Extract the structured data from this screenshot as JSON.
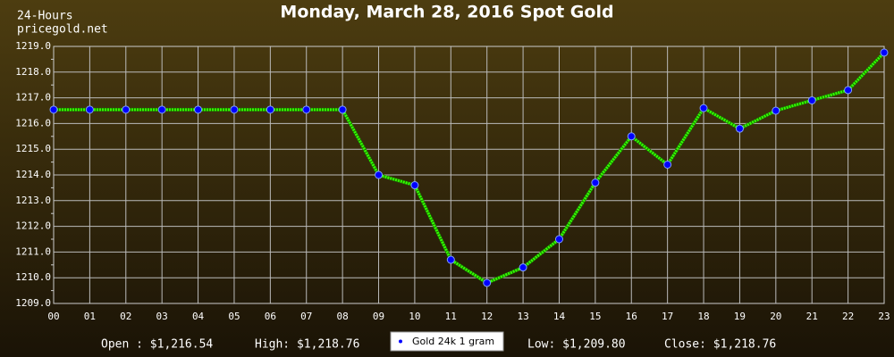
{
  "chart_data": {
    "type": "line",
    "title": "Monday, March 28, 2016 Spot Gold",
    "annotations": [
      "24-Hours",
      "pricegold.net"
    ],
    "categories": [
      "00",
      "01",
      "02",
      "03",
      "04",
      "05",
      "06",
      "07",
      "08",
      "09",
      "10",
      "11",
      "12",
      "13",
      "14",
      "15",
      "16",
      "17",
      "18",
      "19",
      "20",
      "21",
      "22",
      "23"
    ],
    "series": [
      {
        "name": "Gold 24k 1 gram",
        "color": "#33ff00",
        "marker_color": "#0000ff",
        "values": [
          1216.54,
          1216.54,
          1216.54,
          1216.54,
          1216.54,
          1216.54,
          1216.54,
          1216.54,
          1216.54,
          1214.0,
          1213.6,
          1210.7,
          1209.8,
          1210.4,
          1211.5,
          1213.7,
          1215.5,
          1214.4,
          1216.6,
          1215.8,
          1216.5,
          1216.9,
          1217.3,
          1218.76
        ]
      }
    ],
    "ylim": [
      1209,
      1219
    ],
    "yticks": [
      {
        "value": 1209,
        "label": "1209.0"
      },
      {
        "value": 1210,
        "label": "1210.0"
      },
      {
        "value": 1211,
        "label": "1211.0"
      },
      {
        "value": 1212,
        "label": "1212.0"
      },
      {
        "value": 1213,
        "label": "1213.0"
      },
      {
        "value": 1214,
        "label": "1214.0"
      },
      {
        "value": 1215,
        "label": "1215.0"
      },
      {
        "value": 1216,
        "label": "1216.0"
      },
      {
        "value": 1217,
        "label": "1217.0"
      },
      {
        "value": 1218,
        "label": "1218.0"
      },
      {
        "value": 1219,
        "label": "1219.0"
      }
    ],
    "grid": true,
    "summary": [
      "Open : $1,216.54",
      "High: $1,218.76",
      "Low: $1,209.80",
      "Close: $1,218.76"
    ]
  }
}
